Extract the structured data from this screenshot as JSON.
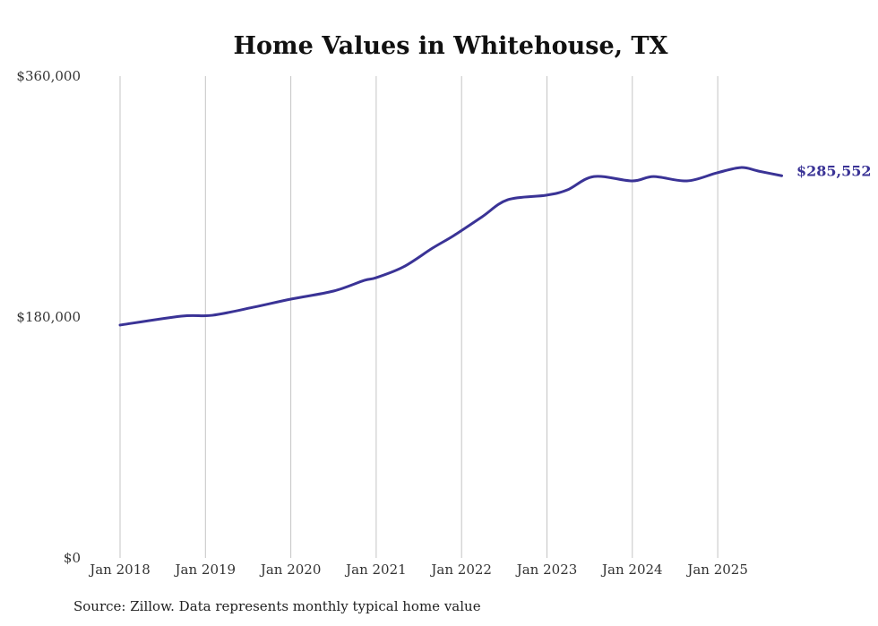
{
  "chart_data": {
    "type": "line",
    "title": "Home Values in Whitehouse, TX",
    "xlabel": "",
    "ylabel": "",
    "ylim": [
      0,
      360000
    ],
    "xlim": [
      2018.0,
      2025.75
    ],
    "y_ticks": [
      0,
      180000,
      360000
    ],
    "y_tick_labels": [
      "$0",
      "$180,000",
      "$360,000"
    ],
    "x_ticks": [
      2018,
      2019,
      2020,
      2021,
      2022,
      2023,
      2024,
      2025
    ],
    "x_tick_labels": [
      "Jan 2018",
      "Jan 2019",
      "Jan 2020",
      "Jan 2021",
      "Jan 2022",
      "Jan 2023",
      "Jan 2024",
      "Jan 2025"
    ],
    "grid": "vertical",
    "series": [
      {
        "name": "Typical home value",
        "color": "#3a3396",
        "x": [
          2018.0,
          2018.72,
          2019.08,
          2019.56,
          2020.0,
          2020.5,
          2020.86,
          2021.0,
          2021.32,
          2021.66,
          2021.91,
          2022.24,
          2022.54,
          2022.99,
          2023.24,
          2023.55,
          2024.0,
          2024.25,
          2024.64,
          2024.99,
          2025.27,
          2025.48,
          2025.75
        ],
        "values": [
          174000,
          180700,
          181300,
          187300,
          193400,
          199400,
          207400,
          209400,
          217500,
          231500,
          240900,
          254900,
          267600,
          271000,
          275000,
          285000,
          281700,
          285000,
          281700,
          287700,
          291700,
          289000,
          285552
        ]
      }
    ],
    "end_label": "$285,552"
  },
  "source": "Source: Zillow. Data represents monthly typical home value"
}
